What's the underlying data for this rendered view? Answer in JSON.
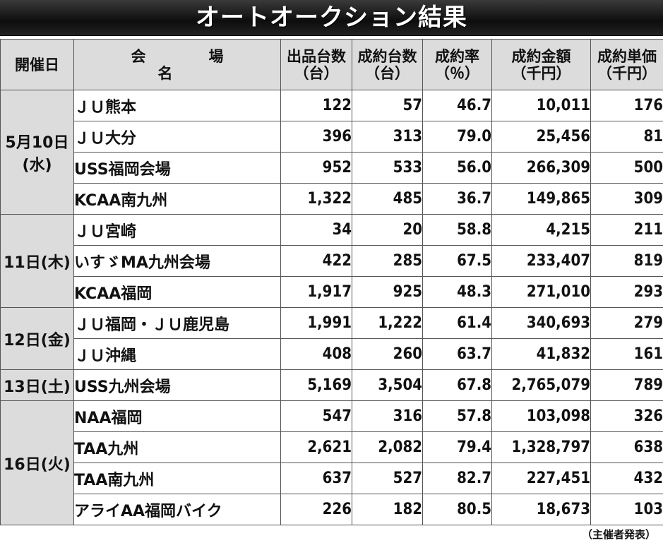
{
  "title": "オートオークション結果",
  "headers": {
    "date": "開催日",
    "venue": "会　場　名",
    "listed_1": "出品台数",
    "listed_2": "（台）",
    "sold_1": "成約台数",
    "sold_2": "（台）",
    "rate_1": "成約率",
    "rate_2": "（％）",
    "amount_1": "成約金額",
    "amount_2": "（千円）",
    "unit_1": "成約単価",
    "unit_2": "（千円）"
  },
  "groups": [
    {
      "date": "5月10日(水)",
      "rows": [
        {
          "venue": "ＪＵ熊本",
          "listed": "122",
          "sold": "57",
          "rate": "46.7",
          "amount": "10,011",
          "unit": "176"
        },
        {
          "venue": "ＪＵ大分",
          "listed": "396",
          "sold": "313",
          "rate": "79.0",
          "amount": "25,456",
          "unit": "81"
        },
        {
          "venue": "USS福岡会場",
          "listed": "952",
          "sold": "533",
          "rate": "56.0",
          "amount": "266,309",
          "unit": "500"
        },
        {
          "venue": "KCAA南九州",
          "listed": "1,322",
          "sold": "485",
          "rate": "36.7",
          "amount": "149,865",
          "unit": "309"
        }
      ]
    },
    {
      "date": "11日(木)",
      "rows": [
        {
          "venue": "ＪＵ宮崎",
          "listed": "34",
          "sold": "20",
          "rate": "58.8",
          "amount": "4,215",
          "unit": "211"
        },
        {
          "venue": "いすゞMA九州会場",
          "listed": "422",
          "sold": "285",
          "rate": "67.5",
          "amount": "233,407",
          "unit": "819"
        },
        {
          "venue": "KCAA福岡",
          "listed": "1,917",
          "sold": "925",
          "rate": "48.3",
          "amount": "271,010",
          "unit": "293"
        }
      ]
    },
    {
      "date": "12日(金)",
      "rows": [
        {
          "venue": "ＪＵ福岡・ＪＵ鹿児島",
          "listed": "1,991",
          "sold": "1,222",
          "rate": "61.4",
          "amount": "340,693",
          "unit": "279"
        },
        {
          "venue": "ＪＵ沖縄",
          "listed": "408",
          "sold": "260",
          "rate": "63.7",
          "amount": "41,832",
          "unit": "161"
        }
      ]
    },
    {
      "date": "13日(土)",
      "rows": [
        {
          "venue": "USS九州会場",
          "listed": "5,169",
          "sold": "3,504",
          "rate": "67.8",
          "amount": "2,765,079",
          "unit": "789"
        }
      ]
    },
    {
      "date": "16日(火)",
      "rows": [
        {
          "venue": "NAA福岡",
          "listed": "547",
          "sold": "316",
          "rate": "57.8",
          "amount": "103,098",
          "unit": "326"
        },
        {
          "venue": "TAA九州",
          "listed": "2,621",
          "sold": "2,082",
          "rate": "79.4",
          "amount": "1,328,797",
          "unit": "638"
        },
        {
          "venue": "TAA南九州",
          "listed": "637",
          "sold": "527",
          "rate": "82.7",
          "amount": "227,451",
          "unit": "432"
        },
        {
          "venue": "アライAA福岡バイク",
          "listed": "226",
          "sold": "182",
          "rate": "80.5",
          "amount": "18,673",
          "unit": "103"
        }
      ]
    }
  ],
  "footer": "（主催者発表）"
}
